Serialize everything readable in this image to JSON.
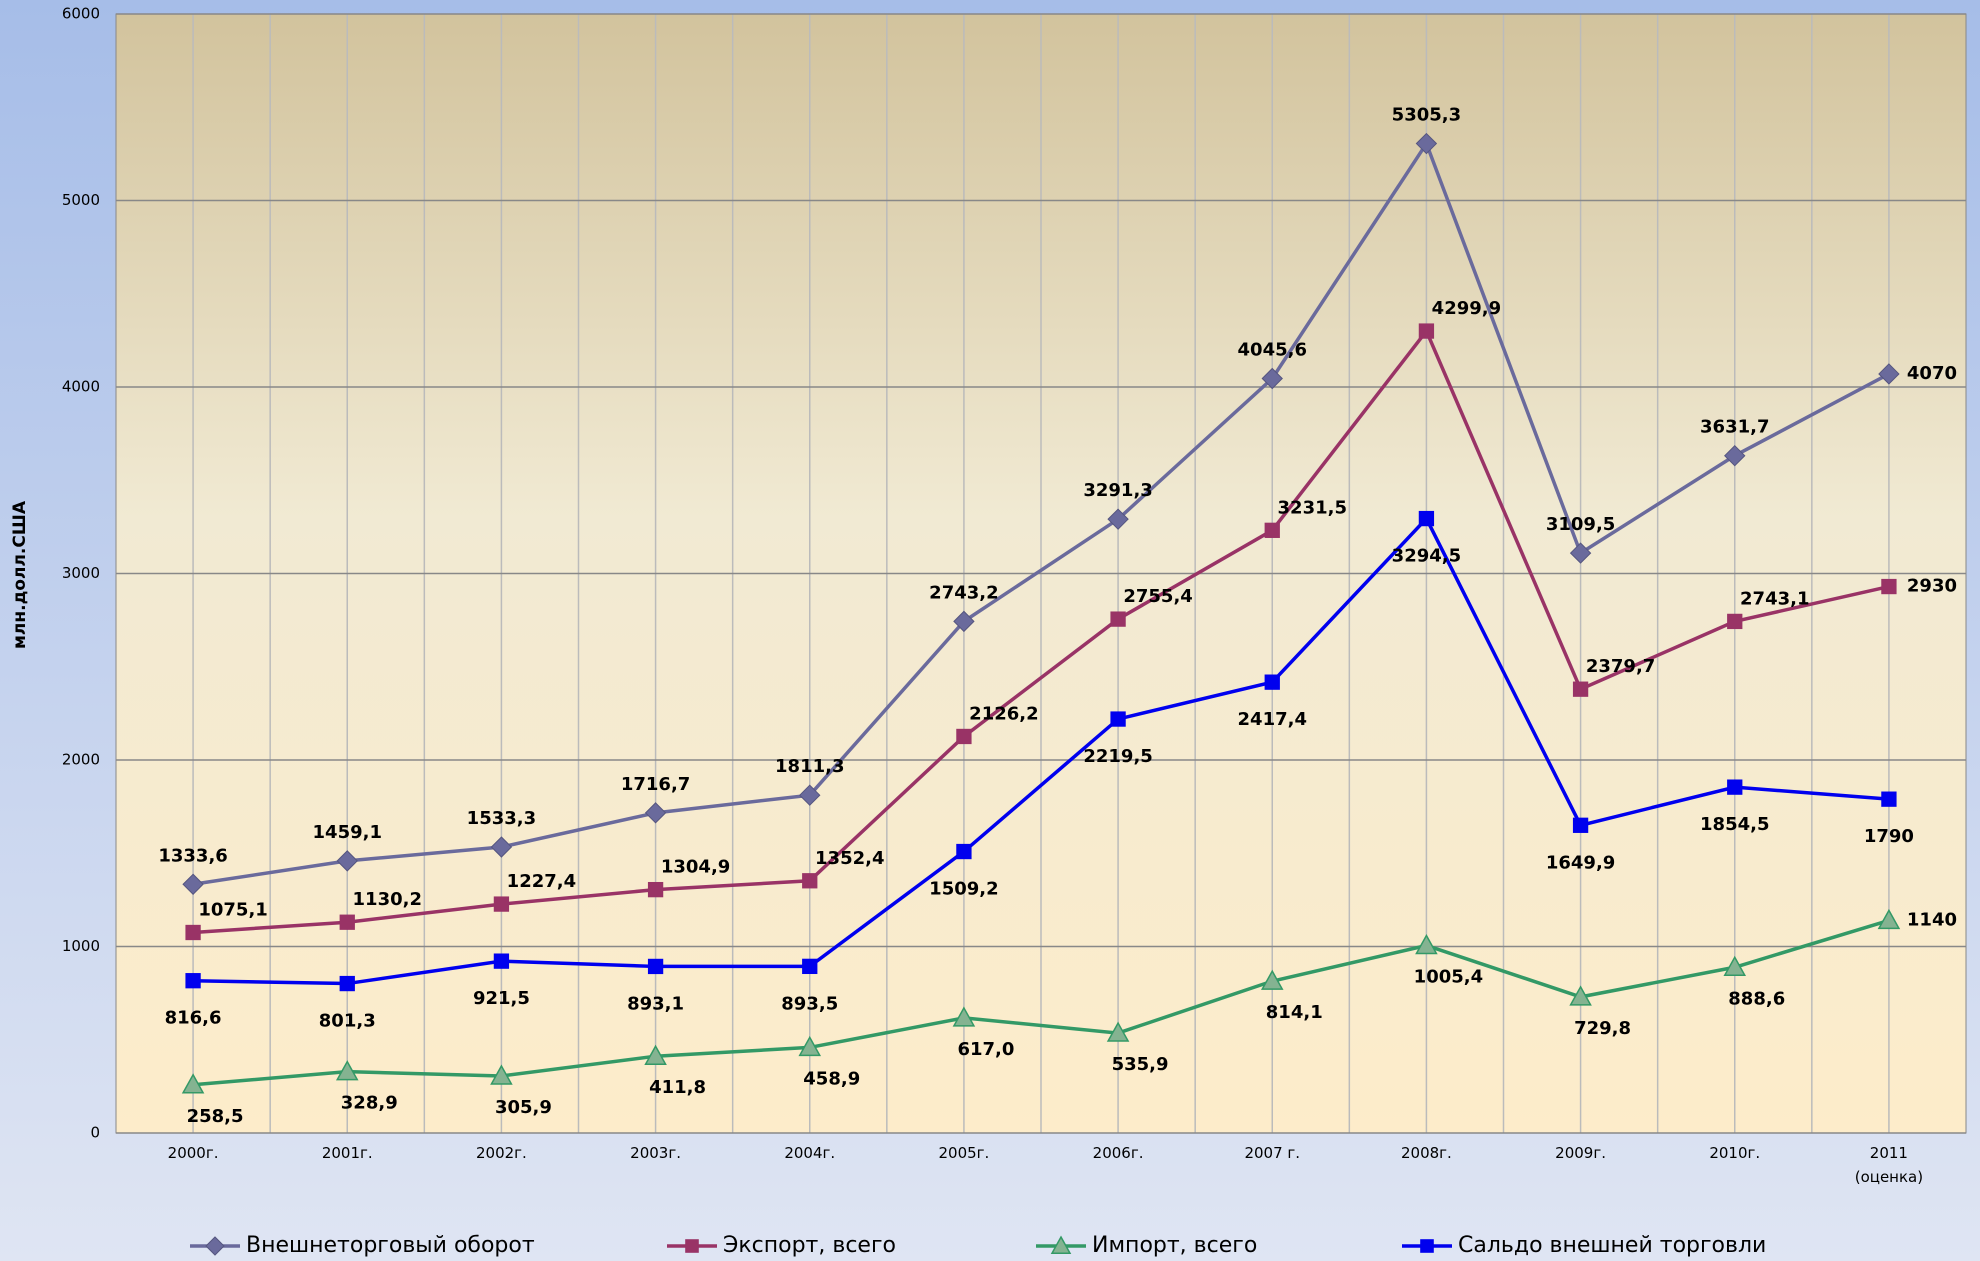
{
  "chart_data": {
    "type": "line",
    "y_label": "млн.долл.США",
    "categories": [
      "2000г.",
      "2001г.",
      "2002г.",
      "2003г.",
      "2004г.",
      "2005г.",
      "2006г.",
      "2007 г.",
      "2008г.",
      "2009г.",
      "2010г.",
      "2011\n(оценка)"
    ],
    "series": [
      {
        "name": "Внешнеторговый оборот",
        "color": "#6a6a9c",
        "marker": "diamond",
        "values": [
          1333.6,
          1459.1,
          1533.3,
          1716.7,
          1811.3,
          2743.2,
          3291.3,
          4045.6,
          5305.3,
          3109.5,
          3631.7,
          4070
        ],
        "value_labels": [
          "1333,6",
          "1459,1",
          "1533,3",
          "1716,7",
          "1811,3",
          "2743,2",
          "3291,3",
          "4045,6",
          "5305,3",
          "3109,5",
          "3631,7",
          "4070"
        ]
      },
      {
        "name": "Экспорт, всего",
        "color": "#993366",
        "marker": "square",
        "values": [
          1075.1,
          1130.2,
          1227.4,
          1304.9,
          1352.4,
          2126.2,
          2755.4,
          3231.5,
          4299.9,
          2379.7,
          2743.1,
          2930
        ],
        "value_labels": [
          "1075,1",
          "1130,2",
          "1227,4",
          "1304,9",
          "1352,4",
          "2126,2",
          "2755,4",
          "3231,5",
          "4299,9",
          "2379,7",
          "2743,1",
          "2930"
        ]
      },
      {
        "name": "Импорт, всего",
        "color": "#339966",
        "marker": "triangle",
        "values": [
          258.5,
          328.9,
          305.9,
          411.8,
          458.9,
          617.0,
          535.9,
          814.1,
          1005.4,
          729.8,
          888.6,
          1140
        ],
        "value_labels": [
          "258,5",
          "328,9",
          "305,9",
          "411,8",
          "458,9",
          "617,0",
          "535,9",
          "814,1",
          "1005,4",
          "729,8",
          "888,6",
          "1140"
        ]
      },
      {
        "name": "Сальдо внешней торговли",
        "color": "#0000ee",
        "marker": "square",
        "values": [
          816.6,
          801.3,
          921.5,
          893.1,
          893.5,
          1509.2,
          2219.5,
          2417.4,
          3294.5,
          1649.9,
          1854.5,
          1790
        ],
        "value_labels": [
          "816,6",
          "801,3",
          "921,5",
          "893,1",
          "893,5",
          "1509,2",
          "2219,5",
          "2417,4",
          "3294,5",
          "1649,9",
          "1854,5",
          "1790"
        ]
      }
    ],
    "ylim": [
      0,
      6000
    ],
    "yticks": [
      0,
      1000,
      2000,
      3000,
      4000,
      5000,
      6000
    ],
    "grid": true,
    "legend": "bottom"
  }
}
